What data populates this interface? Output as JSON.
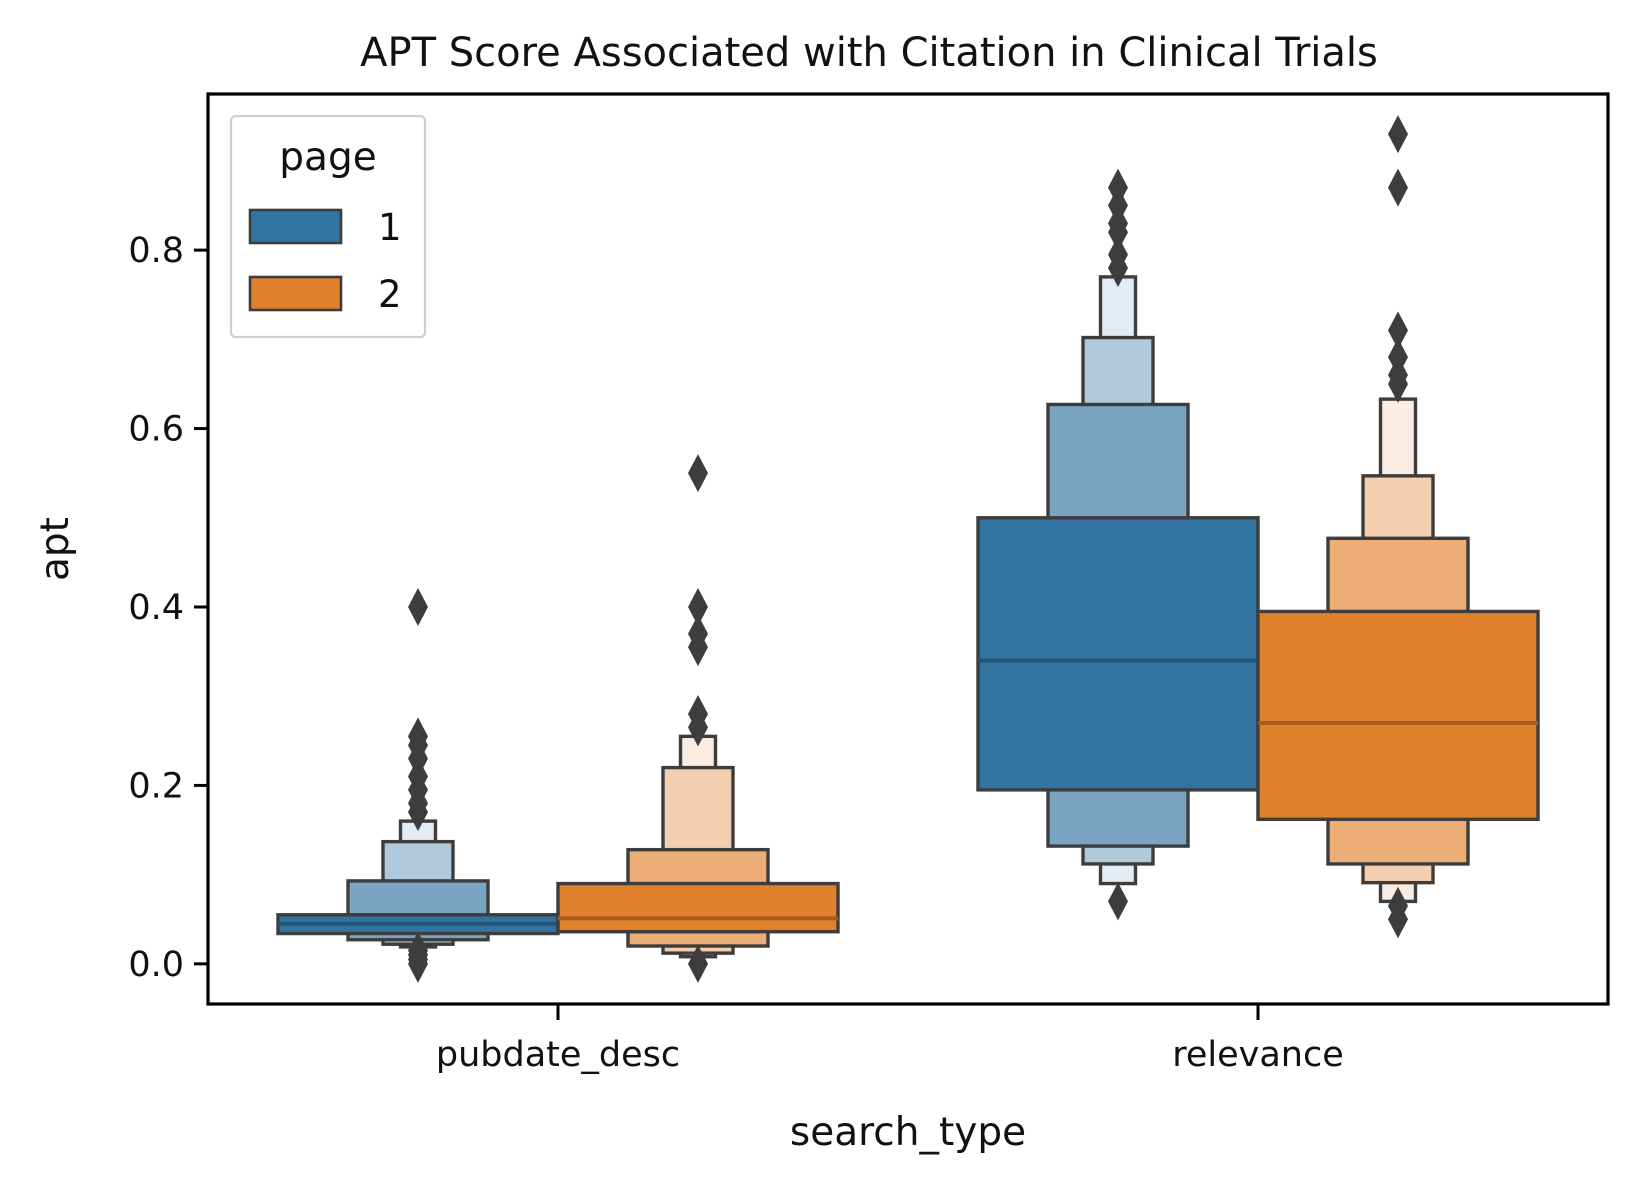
{
  "chart_data": {
    "type": "boxenplot",
    "title": "APT Score Associated with Citation in Clinical Trials",
    "xlabel": "search_type",
    "ylabel": "apt",
    "categories": [
      "pubdate_desc",
      "relevance"
    ],
    "ylim": [
      -0.045,
      0.975
    ],
    "yticks": [
      0.0,
      0.2,
      0.4,
      0.6,
      0.8
    ],
    "ytick_labels": [
      "0.0",
      "0.2",
      "0.4",
      "0.6",
      "0.8"
    ],
    "grid": false,
    "legend": {
      "title": "page",
      "placement": "top-left"
    },
    "series": [
      {
        "name": "1",
        "color": "#3274a1",
        "data": [
          {
            "category": "pubdate_desc",
            "median": 0.045,
            "boxes": [
              [
                0.034,
                0.055
              ],
              [
                0.027,
                0.093
              ],
              [
                0.022,
                0.137
              ],
              [
                0.019,
                0.16
              ]
            ],
            "outliers": [
              0.0,
              0.005,
              0.01,
              0.015,
              0.17,
              0.18,
              0.195,
              0.21,
              0.23,
              0.245,
              0.255,
              0.4
            ]
          },
          {
            "category": "relevance",
            "median": 0.34,
            "boxes": [
              [
                0.195,
                0.5
              ],
              [
                0.132,
                0.627
              ],
              [
                0.112,
                0.702
              ],
              [
                0.09,
                0.77
              ]
            ],
            "outliers": [
              0.07,
              0.78,
              0.795,
              0.82,
              0.83,
              0.85,
              0.87
            ]
          }
        ]
      },
      {
        "name": "2",
        "color": "#e1812c",
        "data": [
          {
            "category": "pubdate_desc",
            "median": 0.051,
            "boxes": [
              [
                0.036,
                0.09
              ],
              [
                0.02,
                0.128
              ],
              [
                0.012,
                0.22
              ],
              [
                0.008,
                0.255
              ]
            ],
            "outliers": [
              0.0,
              0.265,
              0.28,
              0.355,
              0.37,
              0.4,
              0.55
            ]
          },
          {
            "category": "relevance",
            "median": 0.27,
            "boxes": [
              [
                0.162,
                0.395
              ],
              [
                0.112,
                0.477
              ],
              [
                0.091,
                0.547
              ],
              [
                0.07,
                0.633
              ]
            ],
            "outliers": [
              0.05,
              0.065,
              0.65,
              0.66,
              0.68,
              0.71,
              0.87,
              0.93
            ]
          }
        ]
      }
    ]
  }
}
